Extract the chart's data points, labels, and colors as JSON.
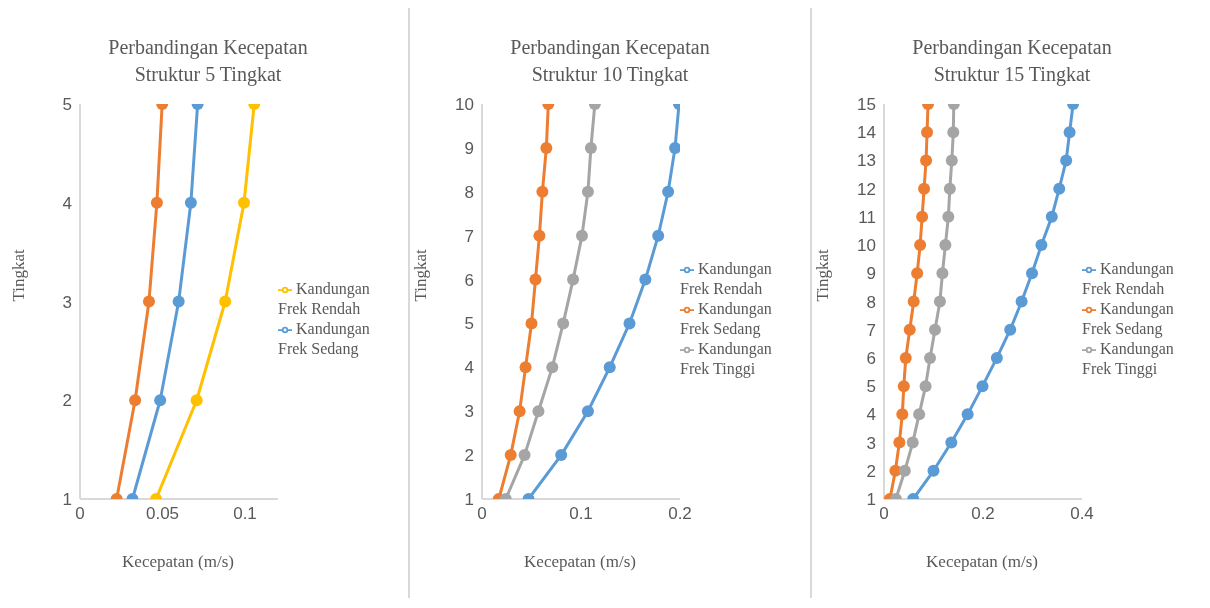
{
  "chart_data": [
    {
      "type": "line",
      "title": "Perbandingan Kecepatan\nStruktur 5 Tingkat",
      "xlabel": "Kecepatan (m/s)",
      "ylabel": "Tingkat",
      "xlim": [
        0,
        0.12
      ],
      "xticks": [
        0,
        0.05,
        0.1
      ],
      "ylim": [
        1,
        5
      ],
      "yticks": [
        1,
        2,
        3,
        4,
        5
      ],
      "marker": "circle",
      "legend": "right",
      "grid": false,
      "series": [
        {
          "name": "Kandungan Frek Rendah",
          "color": "#ffc000",
          "x": [
            0.0461,
            0.0707,
            0.088,
            0.0994,
            0.1056
          ],
          "values": [
            1,
            2,
            3,
            4,
            5
          ]
        },
        {
          "name": "Kandungan Frek Sedang",
          "color": "#5b9bd5",
          "x": [
            0.0318,
            0.0486,
            0.0598,
            0.0672,
            0.0713
          ],
          "values": [
            1,
            2,
            3,
            4,
            5
          ]
        },
        {
          "color": "#ed7d31",
          "x": [
            0.0222,
            0.0334,
            0.0418,
            0.0466,
            0.0498
          ],
          "values": [
            1,
            2,
            3,
            4,
            5
          ]
        }
      ]
    },
    {
      "type": "line",
      "title": "Perbandingan Kecepatan\nStruktur 10 Tingkat",
      "xlabel": "Kecepatan (m/s)",
      "ylabel": "Tingkat",
      "xlim": [
        0,
        0.2
      ],
      "xticks": [
        0,
        0.1,
        0.2
      ],
      "ylim": [
        1,
        10
      ],
      "yticks": [
        1,
        2,
        3,
        4,
        5,
        6,
        7,
        8,
        9,
        10
      ],
      "marker": "circle",
      "legend": "right",
      "grid": false,
      "series": [
        {
          "name": "Kandungan Frek Rendah",
          "color": "#5b9bd5",
          "x": [
            0.047,
            0.08,
            0.107,
            0.129,
            0.149,
            0.165,
            0.178,
            0.188,
            0.195,
            0.199
          ],
          "values": [
            1,
            2,
            3,
            4,
            5,
            6,
            7,
            8,
            9,
            10
          ]
        },
        {
          "name": "Kandungan Frek Sedang",
          "color": "#ed7d31",
          "x": [
            0.017,
            0.029,
            0.038,
            0.044,
            0.05,
            0.054,
            0.058,
            0.061,
            0.065,
            0.067
          ],
          "values": [
            1,
            2,
            3,
            4,
            5,
            6,
            7,
            8,
            9,
            10
          ]
        },
        {
          "name": "Kandungan Frek Tinggi",
          "color": "#a5a5a5",
          "x": [
            0.024,
            0.043,
            0.057,
            0.071,
            0.082,
            0.092,
            0.101,
            0.107,
            0.11,
            0.114
          ],
          "values": [
            1,
            2,
            3,
            4,
            5,
            6,
            7,
            8,
            9,
            10
          ]
        }
      ]
    },
    {
      "type": "line",
      "title": "Perbandingan Kecepatan\nStruktur 15 Tingkat",
      "xlabel": "Kecepatan (m/s)",
      "ylabel": "Tingkat",
      "xlim": [
        0,
        0.4
      ],
      "xticks": [
        0,
        0.2,
        0.4
      ],
      "ylim": [
        1,
        15
      ],
      "yticks": [
        1,
        2,
        3,
        4,
        5,
        6,
        7,
        8,
        9,
        10,
        11,
        12,
        13,
        14,
        15
      ],
      "marker": "circle",
      "legend": "right",
      "grid": false,
      "series": [
        {
          "name": "Kandungan Frek Rendah",
          "color": "#5b9bd5",
          "x": [
            0.059,
            0.1,
            0.136,
            0.169,
            0.199,
            0.228,
            0.255,
            0.278,
            0.299,
            0.318,
            0.339,
            0.354,
            0.368,
            0.375,
            0.382
          ],
          "values": [
            1,
            2,
            3,
            4,
            5,
            6,
            7,
            8,
            9,
            10,
            11,
            12,
            13,
            14,
            15
          ]
        },
        {
          "name": "Kandungan Frek Sedang",
          "color": "#ed7d31",
          "x": [
            0.012,
            0.023,
            0.031,
            0.037,
            0.04,
            0.044,
            0.052,
            0.06,
            0.067,
            0.073,
            0.077,
            0.081,
            0.085,
            0.087,
            0.089
          ],
          "values": [
            1,
            2,
            3,
            4,
            5,
            6,
            7,
            8,
            9,
            10,
            11,
            12,
            13,
            14,
            15
          ]
        },
        {
          "name": "Kandungan Frek Tinggi",
          "color": "#a5a5a5",
          "x": [
            0.024,
            0.042,
            0.058,
            0.071,
            0.084,
            0.093,
            0.103,
            0.113,
            0.118,
            0.124,
            0.13,
            0.133,
            0.137,
            0.14,
            0.141
          ],
          "values": [
            1,
            2,
            3,
            4,
            5,
            6,
            7,
            8,
            9,
            10,
            11,
            12,
            13,
            14,
            15
          ]
        }
      ]
    }
  ]
}
